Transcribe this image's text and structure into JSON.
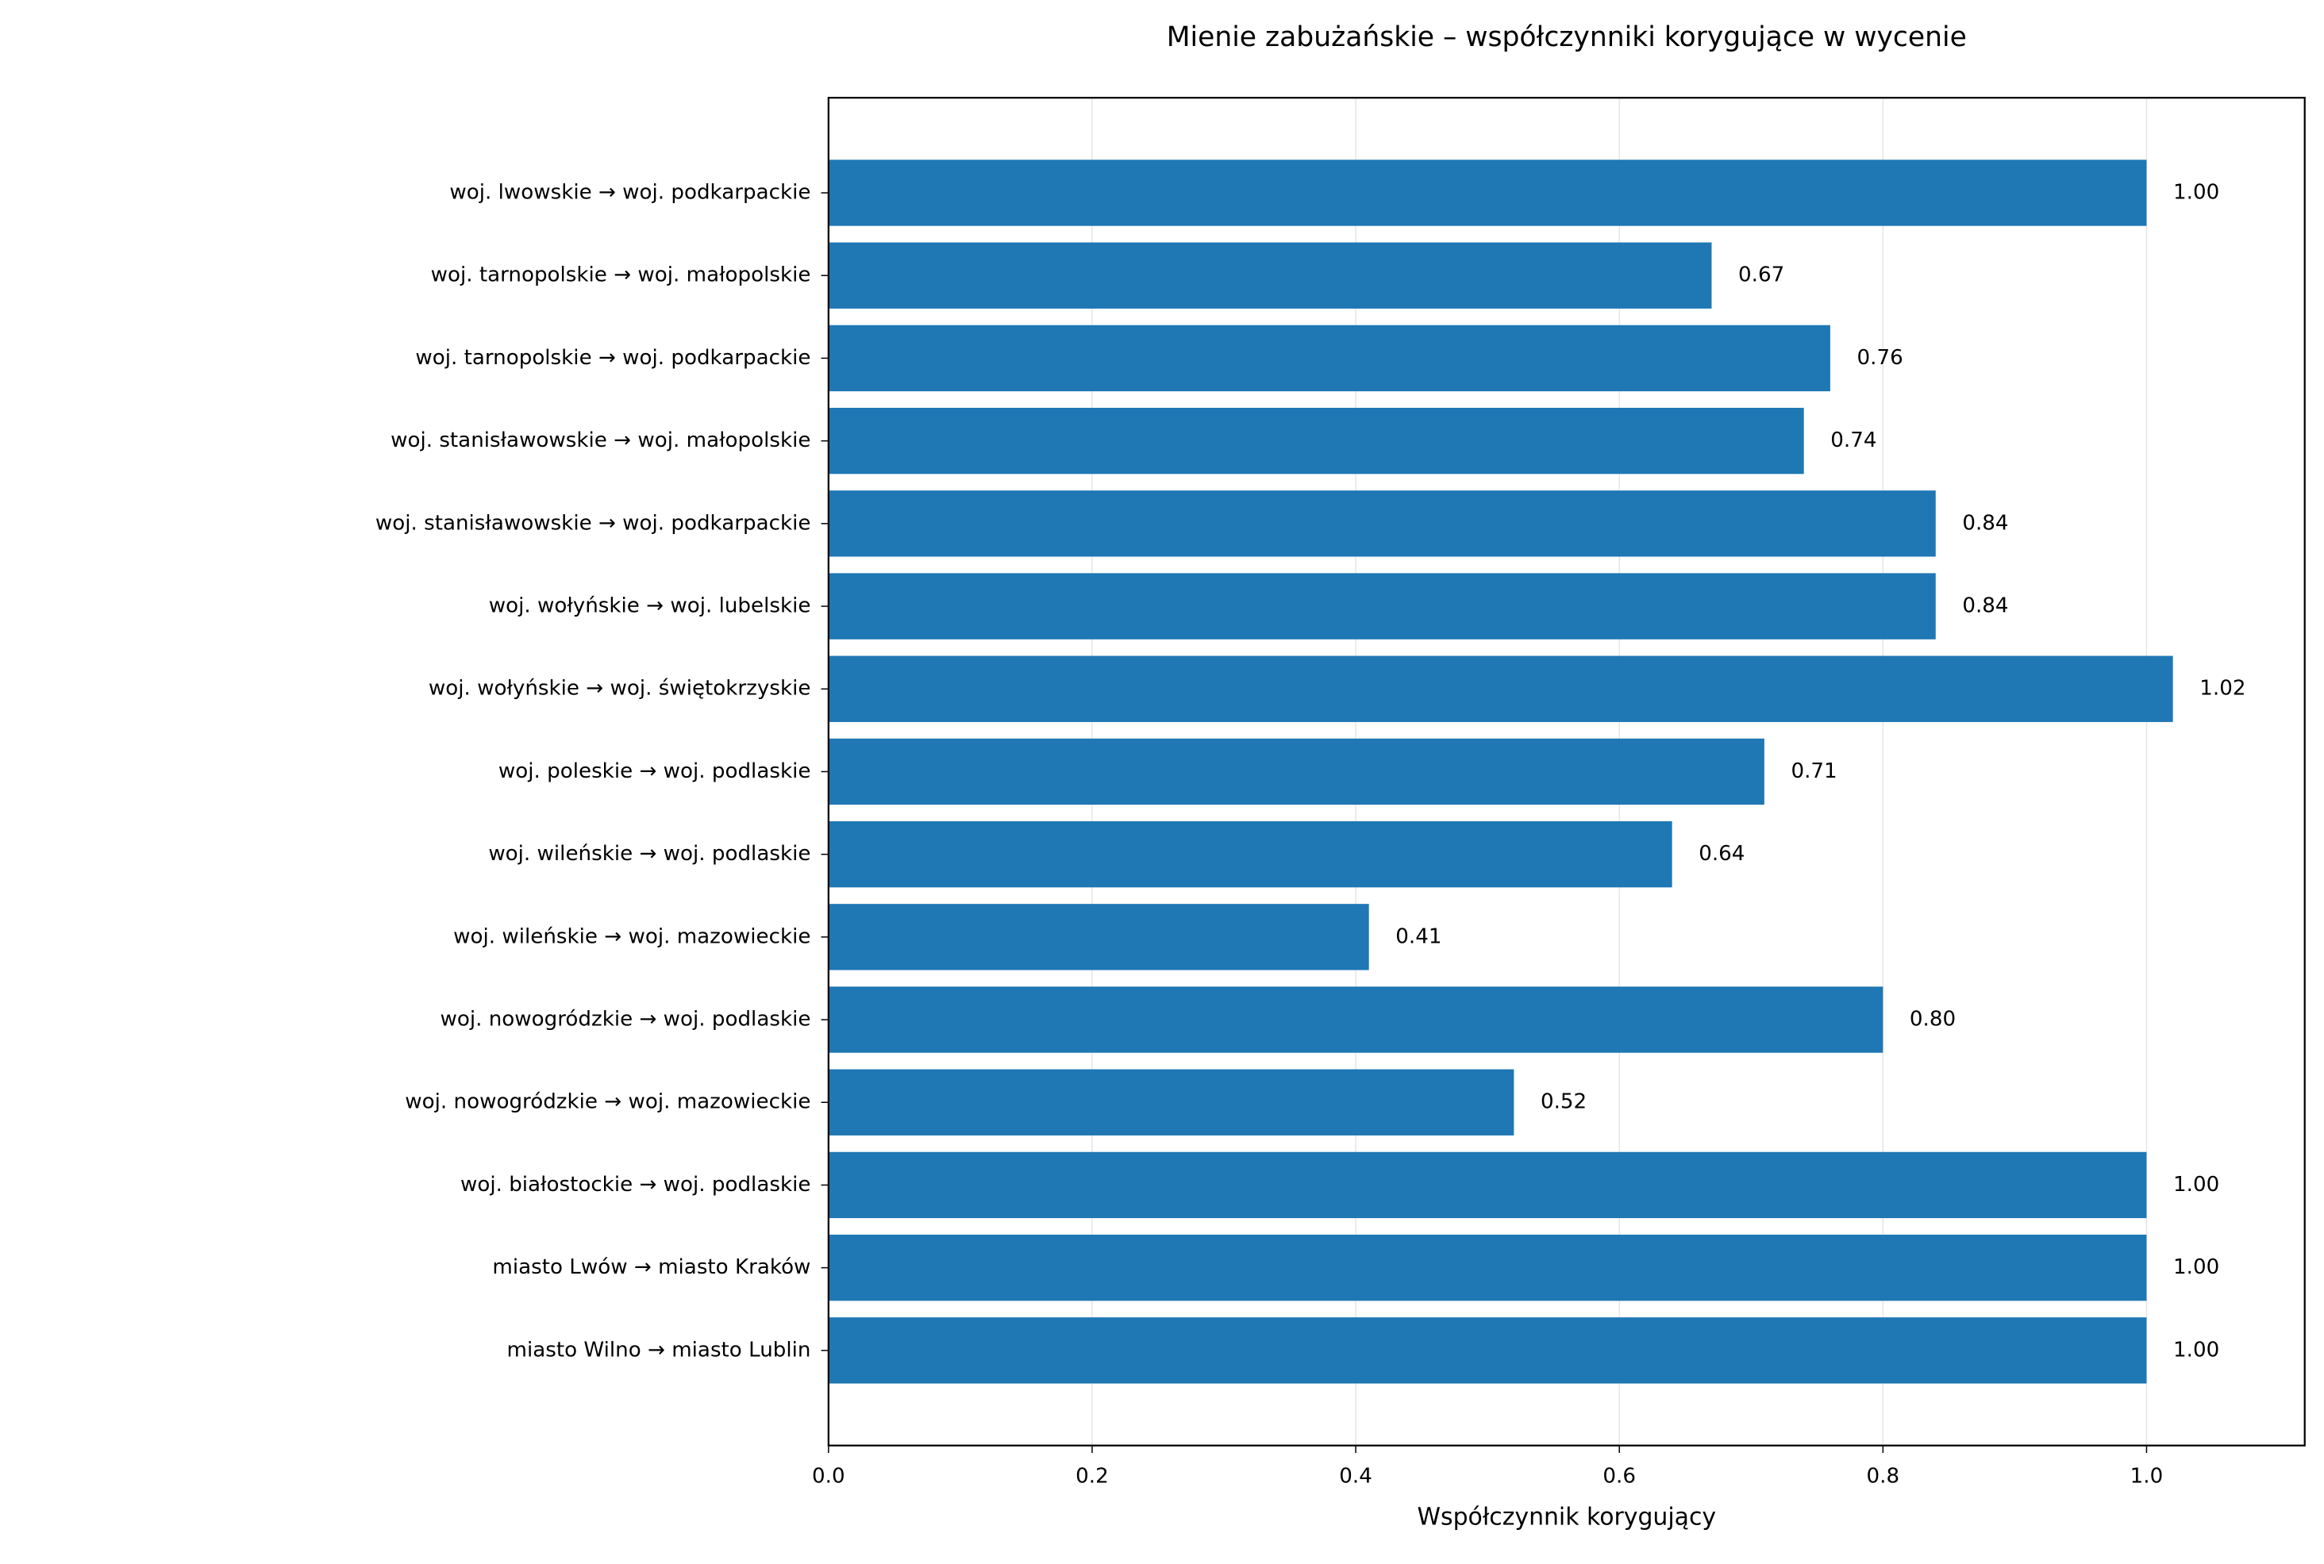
{
  "chart_data": {
    "type": "barh",
    "title": "Mienie zabużańskie – współczynniki korygujące w wycenie",
    "xlabel": "Współczynnik korygujący",
    "categories": [
      "woj. lwowskie → woj. podkarpackie",
      "woj. tarnopolskie → woj. małopolskie",
      "woj. tarnopolskie → woj. podkarpackie",
      "woj. stanisławowskie → woj. małopolskie",
      "woj. stanisławowskie → woj. podkarpackie",
      "woj. wołyńskie → woj. lubelskie",
      "woj. wołyńskie → woj. świętokrzyskie",
      "woj. poleskie → woj. podlaskie",
      "woj. wileńskie → woj. podlaskie",
      "woj. wileńskie → woj. mazowieckie",
      "woj. nowogródzkie → woj. podlaskie",
      "woj. nowogródzkie → woj. mazowieckie",
      "woj. białostockie → woj. podlaskie",
      "miasto Lwów → miasto Kraków",
      "miasto Wilno → miasto Lublin"
    ],
    "values": [
      1.0,
      0.67,
      0.76,
      0.74,
      0.84,
      0.84,
      1.02,
      0.71,
      0.64,
      0.41,
      0.8,
      0.52,
      1.0,
      1.0,
      1.0
    ],
    "value_labels": [
      "1.00",
      "0.67",
      "0.76",
      "0.74",
      "0.84",
      "0.84",
      "1.02",
      "0.71",
      "0.64",
      "0.41",
      "0.80",
      "0.52",
      "1.00",
      "1.00",
      "1.00"
    ],
    "color": "#1f77b4",
    "xlim": [
      0,
      1.12
    ],
    "xticks": [
      {
        "value": 0,
        "label": "0.0"
      },
      0.2,
      0.4,
      0.6,
      0.8,
      {
        "value": 1,
        "label": "1.0"
      }
    ],
    "grid": true
  }
}
